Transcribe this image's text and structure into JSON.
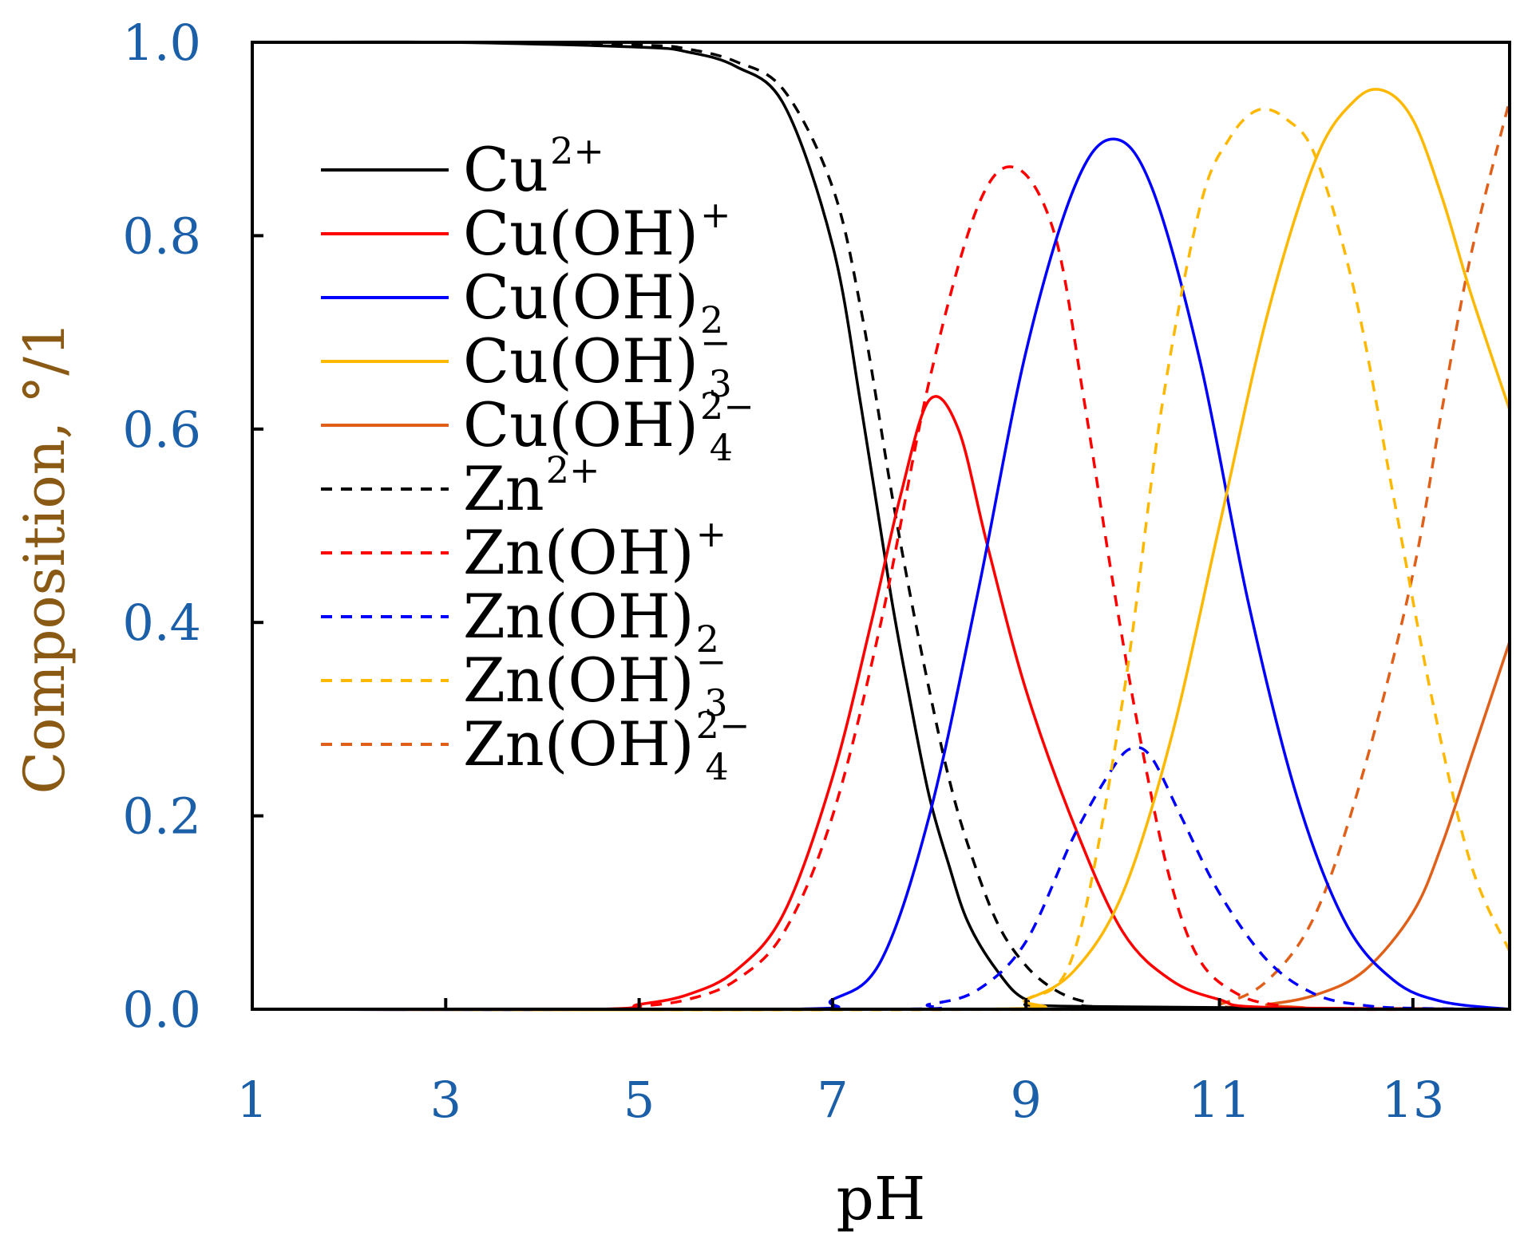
{
  "chart_data": {
    "type": "line",
    "title": "",
    "xlabel": "pH",
    "ylabel": "Composition, °/1",
    "xlim": [
      1,
      14
    ],
    "ylim": [
      0,
      1
    ],
    "xticks": [
      1,
      3,
      5,
      7,
      9,
      11,
      13
    ],
    "yticks": [
      0.0,
      0.2,
      0.4,
      0.6,
      0.8,
      1.0
    ],
    "xtick_labels": [
      "1",
      "3",
      "5",
      "7",
      "9",
      "11",
      "13"
    ],
    "ytick_labels": [
      "0.0",
      "0.2",
      "0.4",
      "0.6",
      "0.8",
      "1.0"
    ],
    "tick_label_color": "#1a5fa8",
    "ylabel_color": "#8a5a14",
    "grid": false,
    "legend_position": "top-left",
    "series": [
      {
        "name": "Cu2+",
        "label": {
          "base": "Cu",
          "sup": "2+",
          "sub": ""
        },
        "color": "#000000",
        "dash": "solid",
        "x": [
          1,
          3,
          5,
          5.5,
          6,
          6.5,
          7,
          7.3,
          7.6,
          7.8,
          8,
          8.2,
          8.4,
          8.7,
          9,
          9.5,
          14
        ],
        "y": [
          1.0,
          1.0,
          0.995,
          0.99,
          0.975,
          0.935,
          0.79,
          0.62,
          0.43,
          0.32,
          0.22,
          0.15,
          0.09,
          0.04,
          0.01,
          0.003,
          0
        ]
      },
      {
        "name": "Cu(OH)+",
        "label": {
          "base": "Cu(OH)",
          "sup": "+",
          "sub": ""
        },
        "color": "#ff0000",
        "dash": "solid",
        "x": [
          1,
          4.5,
          5,
          5.5,
          6,
          6.5,
          7,
          7.4,
          7.7,
          8,
          8.3,
          8.6,
          9,
          9.5,
          10,
          10.5,
          11,
          11.5,
          14
        ],
        "y": [
          0,
          0,
          0.005,
          0.015,
          0.04,
          0.1,
          0.24,
          0.4,
          0.53,
          0.63,
          0.6,
          0.48,
          0.33,
          0.19,
          0.08,
          0.03,
          0.01,
          0.002,
          0
        ]
      },
      {
        "name": "Cu(OH)2",
        "label": {
          "base": "Cu(OH)",
          "sup": "",
          "sub": "2"
        },
        "color": "#0000ff",
        "dash": "solid",
        "x": [
          1,
          6.5,
          7,
          7.5,
          8,
          8.5,
          9,
          9.5,
          9.9,
          10.3,
          10.8,
          11.3,
          11.8,
          12.3,
          12.8,
          13.3,
          14
        ],
        "y": [
          0,
          0,
          0.01,
          0.05,
          0.2,
          0.43,
          0.68,
          0.85,
          0.9,
          0.85,
          0.67,
          0.42,
          0.22,
          0.09,
          0.03,
          0.008,
          0
        ]
      },
      {
        "name": "Cu(OH)3-",
        "label": {
          "base": "Cu(OH)",
          "sup": "−",
          "sub": "3"
        },
        "color": "#ffb800",
        "dash": "solid",
        "x": [
          1,
          8.5,
          9,
          9.5,
          10,
          10.5,
          11,
          11.5,
          12,
          12.4,
          12.7,
          13,
          13.3,
          13.6,
          14
        ],
        "y": [
          0,
          0,
          0.01,
          0.04,
          0.12,
          0.28,
          0.5,
          0.72,
          0.88,
          0.94,
          0.95,
          0.92,
          0.84,
          0.74,
          0.62
        ]
      },
      {
        "name": "Cu(OH)4 2-",
        "label": {
          "base": "Cu(OH)",
          "sup": "2−",
          "sub": "4"
        },
        "color": "#e0601a",
        "dash": "solid",
        "x": [
          1,
          11,
          11.5,
          12,
          12.5,
          13,
          13.3,
          13.6,
          14
        ],
        "y": [
          0,
          0,
          0.005,
          0.015,
          0.04,
          0.1,
          0.17,
          0.26,
          0.38
        ]
      },
      {
        "name": "Zn2+",
        "label": {
          "base": "Zn",
          "sup": "2+",
          "sub": ""
        },
        "color": "#000000",
        "dash": "dashed",
        "x": [
          1,
          3,
          5,
          5.5,
          6,
          6.5,
          7,
          7.3,
          7.6,
          7.8,
          8,
          8.2,
          8.4,
          8.7,
          9,
          9.3,
          9.6,
          10,
          14
        ],
        "y": [
          1.0,
          1.0,
          0.997,
          0.993,
          0.98,
          0.95,
          0.85,
          0.72,
          0.54,
          0.43,
          0.33,
          0.24,
          0.17,
          0.09,
          0.045,
          0.02,
          0.008,
          0.002,
          0
        ]
      },
      {
        "name": "Zn(OH)+",
        "label": {
          "base": "Zn(OH)",
          "sup": "+",
          "sub": ""
        },
        "color": "#ff0000",
        "dash": "dashed",
        "x": [
          1,
          4.5,
          5,
          5.5,
          6,
          6.5,
          7,
          7.5,
          8,
          8.5,
          8.9,
          9.3,
          9.6,
          9.9,
          10.2,
          10.5,
          10.8,
          11.2,
          11.6,
          12,
          14
        ],
        "y": [
          0,
          0,
          0.003,
          0.01,
          0.03,
          0.08,
          0.2,
          0.4,
          0.65,
          0.83,
          0.87,
          0.8,
          0.63,
          0.44,
          0.27,
          0.13,
          0.05,
          0.015,
          0.004,
          0,
          0
        ]
      },
      {
        "name": "Zn(OH)2",
        "label": {
          "base": "Zn(OH)",
          "sup": "",
          "sub": "2"
        },
        "color": "#0000ff",
        "dash": "dashed",
        "x": [
          1,
          7.5,
          8,
          8.5,
          9,
          9.5,
          9.9,
          10.1,
          10.3,
          10.6,
          11,
          11.5,
          12,
          12.5,
          13,
          14
        ],
        "y": [
          0,
          0,
          0.005,
          0.02,
          0.07,
          0.18,
          0.25,
          0.27,
          0.26,
          0.2,
          0.12,
          0.05,
          0.015,
          0.004,
          0.001,
          0
        ]
      },
      {
        "name": "Zn(OH)3-",
        "label": {
          "base": "Zn(OH)",
          "sup": "−",
          "sub": "3"
        },
        "color": "#ffb800",
        "dash": "dashed",
        "x": [
          1,
          8.5,
          9,
          9.5,
          10,
          10.4,
          10.8,
          11.1,
          11.4,
          11.7,
          12,
          12.4,
          12.8,
          13.2,
          13.6,
          14
        ],
        "y": [
          0,
          0,
          0.01,
          0.06,
          0.32,
          0.62,
          0.83,
          0.9,
          0.93,
          0.92,
          0.88,
          0.74,
          0.53,
          0.32,
          0.15,
          0.06
        ]
      },
      {
        "name": "Zn(OH)4 2-",
        "label": {
          "base": "Zn(OH)",
          "sup": "2−",
          "sub": "4"
        },
        "color": "#e0601a",
        "dash": "dashed",
        "x": [
          1,
          10.5,
          11,
          11.5,
          12,
          12.5,
          13,
          13.3,
          13.6,
          14
        ],
        "y": [
          0,
          0,
          0.005,
          0.03,
          0.1,
          0.25,
          0.45,
          0.62,
          0.78,
          0.94
        ]
      }
    ]
  }
}
